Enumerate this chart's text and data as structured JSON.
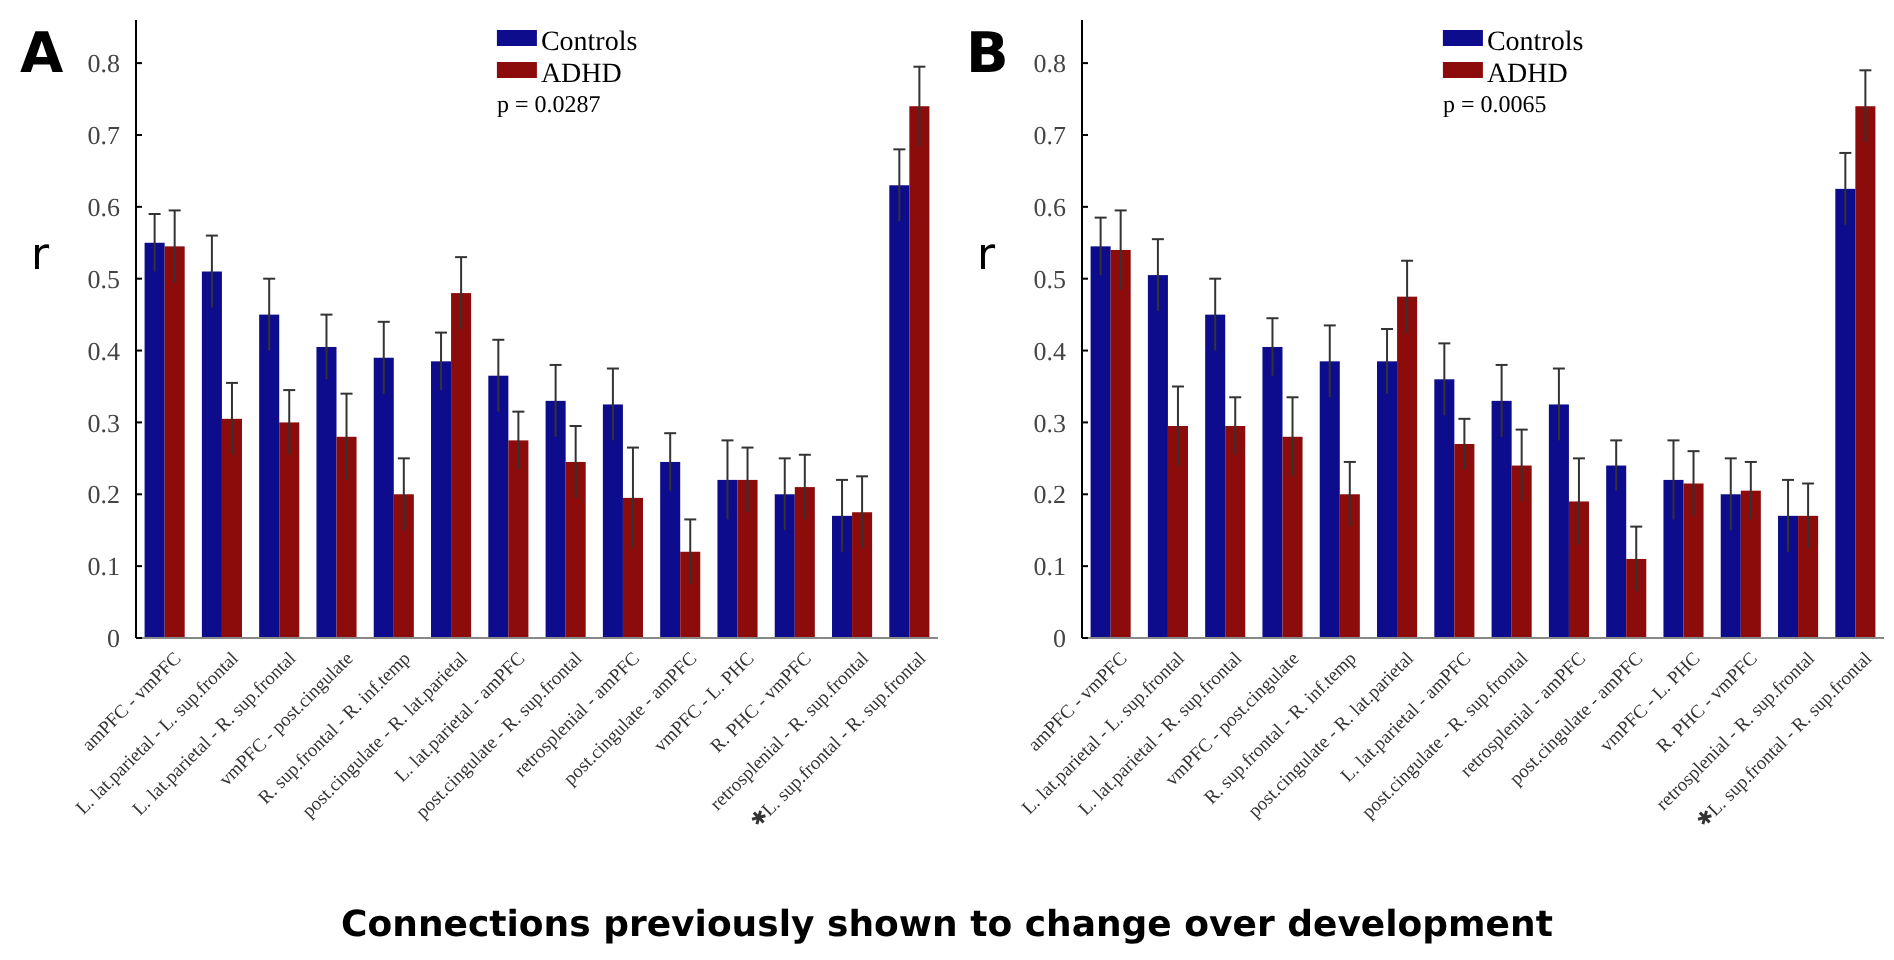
{
  "chart_data": [
    {
      "type": "bar",
      "title": "A",
      "ylabel": "r",
      "xlabel": "Connections previously shown to change over development",
      "categories": [
        "amPFC - vmPFC",
        "L. lat.parietal - L. sup.frontal",
        "L. lat.parietal - R. sup.frontal",
        "vmPFC - post.cingulate",
        "R. sup.frontal - R. inf.temp",
        "post.cingulate - R. lat.parietal",
        "L. lat.parietal - amPFC",
        "post.cingulate - R. sup.frontal",
        "retrosplenial - amPFC",
        "post.cingulate - amPFC",
        "vmPFC - L. PHC",
        "R. PHC - vmPFC",
        "retrosplenial - R. sup.frontal",
        "✱L. sup.frontal - R. sup.frontal"
      ],
      "series": [
        {
          "name": "Controls",
          "color": "#0c0c8c",
          "values": [
            0.55,
            0.51,
            0.45,
            0.405,
            0.39,
            0.385,
            0.365,
            0.33,
            0.325,
            0.245,
            0.22,
            0.2,
            0.17,
            0.63
          ],
          "errors": [
            0.04,
            0.05,
            0.05,
            0.045,
            0.05,
            0.04,
            0.05,
            0.05,
            0.05,
            0.04,
            0.055,
            0.05,
            0.05,
            0.05
          ]
        },
        {
          "name": "ADHD",
          "color": "#8c0c0c",
          "values": [
            0.545,
            0.305,
            0.3,
            0.28,
            0.2,
            0.48,
            0.275,
            0.245,
            0.195,
            0.12,
            0.22,
            0.21,
            0.175,
            0.74
          ],
          "errors": [
            0.05,
            0.05,
            0.045,
            0.06,
            0.05,
            0.05,
            0.04,
            0.05,
            0.07,
            0.045,
            0.045,
            0.045,
            0.05,
            0.055
          ]
        }
      ],
      "ylim": [
        0,
        0.86
      ],
      "yticks": [
        0,
        0.1,
        0.2,
        0.3,
        0.4,
        0.5,
        0.6,
        0.7,
        0.8
      ],
      "legend": "top",
      "annotations": [
        "p =  0.0287"
      ]
    },
    {
      "type": "bar",
      "title": "B",
      "ylabel": "r",
      "categories": [
        "amPFC - vmPFC",
        "L. lat.parietal - L. sup.frontal",
        "L. lat.parietal - R. sup.frontal",
        "vmPFC - post.cingulate",
        "R. sup.frontal - R. inf.temp",
        "post.cingulate - R. lat.parietal",
        "L. lat.parietal - amPFC",
        "post.cingulate - R. sup.frontal",
        "retrosplenial - amPFC",
        "post.cingulate - amPFC",
        "vmPFC - L. PHC",
        "R. PHC - vmPFC",
        "retrosplenial - R. sup.frontal",
        "✱L. sup.frontal - R. sup.frontal"
      ],
      "series": [
        {
          "name": "Controls",
          "color": "#0c0c8c",
          "values": [
            0.545,
            0.505,
            0.45,
            0.405,
            0.385,
            0.385,
            0.36,
            0.33,
            0.325,
            0.24,
            0.22,
            0.2,
            0.17,
            0.625
          ],
          "errors": [
            0.04,
            0.05,
            0.05,
            0.04,
            0.05,
            0.045,
            0.05,
            0.05,
            0.05,
            0.035,
            0.055,
            0.05,
            0.05,
            0.05
          ]
        },
        {
          "name": "ADHD",
          "color": "#8c0c0c",
          "values": [
            0.54,
            0.295,
            0.295,
            0.28,
            0.2,
            0.475,
            0.27,
            0.24,
            0.19,
            0.11,
            0.215,
            0.205,
            0.17,
            0.74
          ],
          "errors": [
            0.055,
            0.055,
            0.04,
            0.055,
            0.045,
            0.05,
            0.035,
            0.05,
            0.06,
            0.045,
            0.045,
            0.04,
            0.045,
            0.05
          ]
        }
      ],
      "ylim": [
        0,
        0.86
      ],
      "yticks": [
        0,
        0.1,
        0.2,
        0.3,
        0.4,
        0.5,
        0.6,
        0.7,
        0.8
      ],
      "legend": "top",
      "annotations": [
        "p =  0.0065"
      ]
    }
  ]
}
